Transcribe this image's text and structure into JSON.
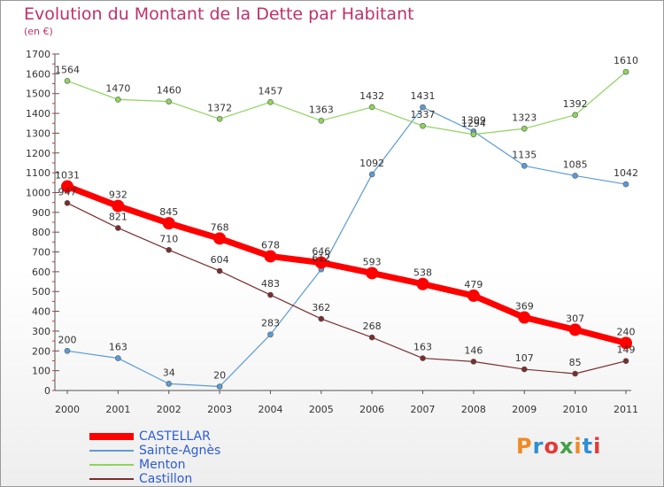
{
  "page": {
    "title": "Evolution du Montant de la Dette par Habitant",
    "unit": "(en €)",
    "logo": "Proxiti"
  },
  "chart_data": {
    "type": "line",
    "title": "Evolution du Montant de la Dette par Habitant",
    "ylabel": "(en €)",
    "xlabel": "",
    "x": [
      "2000",
      "2001",
      "2002",
      "2003",
      "2004",
      "2005",
      "2006",
      "2007",
      "2008",
      "2009",
      "2010",
      "2011"
    ],
    "ylim": [
      0,
      1700
    ],
    "yticks": [
      0,
      100,
      200,
      300,
      400,
      500,
      600,
      700,
      800,
      900,
      1000,
      1100,
      1200,
      1300,
      1400,
      1500,
      1600,
      1700
    ],
    "grid": false,
    "legend_position": "bottom-left",
    "series": [
      {
        "name": "CASTELLAR",
        "color": "#ff0000",
        "values": [
          1031,
          932,
          845,
          768,
          678,
          646,
          593,
          538,
          479,
          369,
          307,
          240
        ]
      },
      {
        "name": "Sainte-Agnès",
        "color": "#5b9bd5",
        "values": [
          200,
          163,
          34,
          20,
          283,
          612,
          1092,
          1431,
          1309,
          1135,
          1085,
          1042
        ]
      },
      {
        "name": "Menton",
        "color": "#8ed45e",
        "values": [
          1564,
          1470,
          1460,
          1372,
          1457,
          1363,
          1432,
          1337,
          1294,
          1323,
          1392,
          1610
        ]
      },
      {
        "name": "Castillon",
        "color": "#7b2d2d",
        "values": [
          947,
          821,
          710,
          604,
          483,
          362,
          268,
          163,
          146,
          107,
          85,
          149
        ]
      }
    ]
  }
}
